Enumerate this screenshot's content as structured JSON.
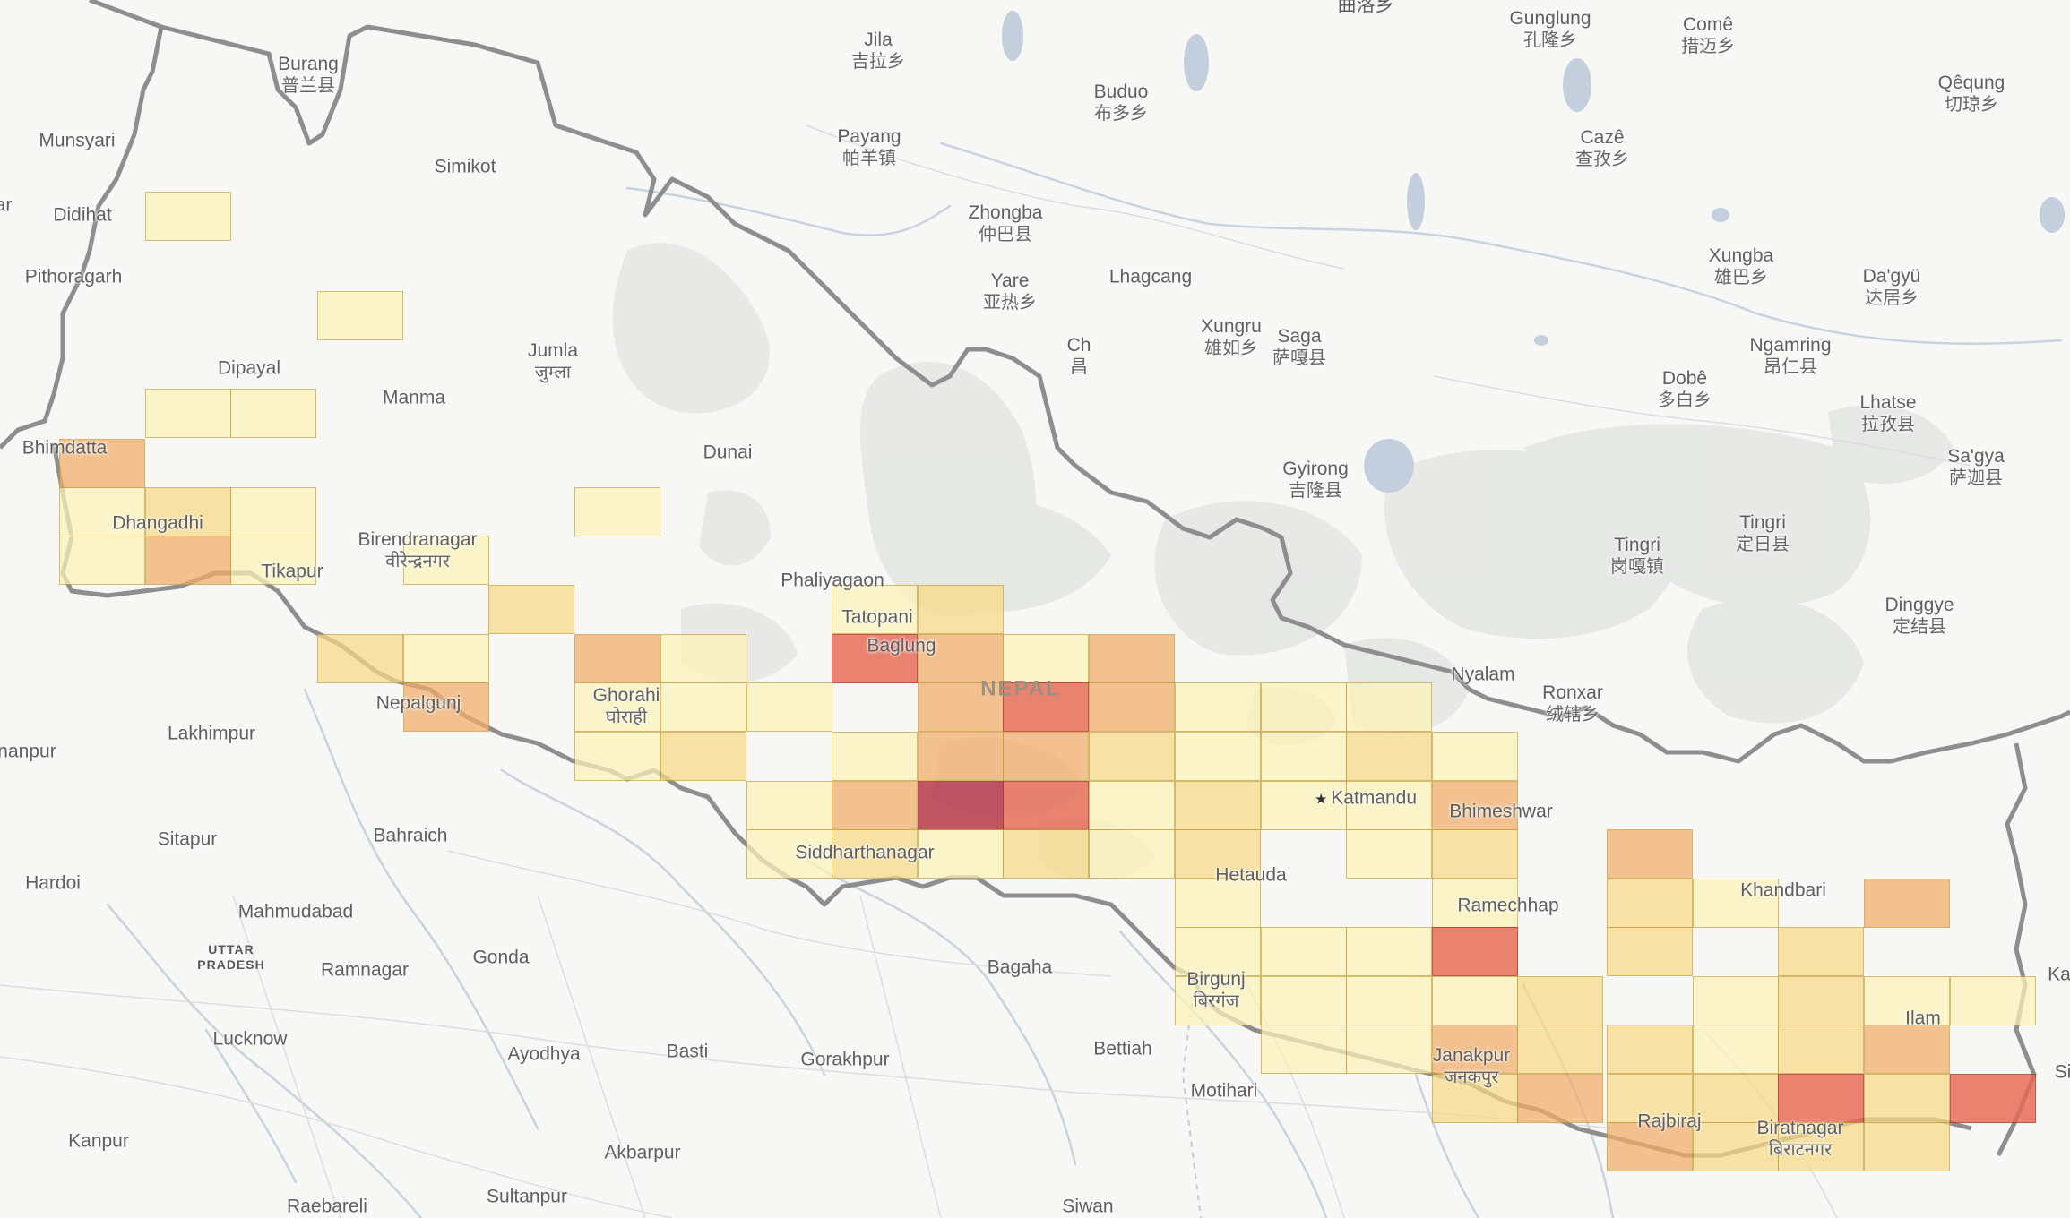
{
  "map": {
    "background_color": "#f7f7f5",
    "border_color": "#8e8e8e",
    "river_color": "#c8d3df",
    "lake_color": "#c3cfdc",
    "land_shade_color": "#e6e8e6",
    "country_label": "NEPAL",
    "capital": "Katmandu"
  },
  "labels": [
    {
      "id": "quluo",
      "name": "曲洛乡",
      "sub": ""
    },
    {
      "id": "burang",
      "name": "Burang",
      "sub": "普兰县"
    },
    {
      "id": "jila",
      "name": "Jila",
      "sub": "吉拉乡"
    },
    {
      "id": "gunglung",
      "name": "Gunglung",
      "sub": "孔隆乡"
    },
    {
      "id": "come",
      "name": "Comê",
      "sub": "措迈乡"
    },
    {
      "id": "qequng",
      "name": "Qêqung",
      "sub": "切琼乡"
    },
    {
      "id": "buduo",
      "name": "Buduo",
      "sub": "布多乡"
    },
    {
      "id": "munsyari",
      "name": "Munsyari",
      "sub": ""
    },
    {
      "id": "payang",
      "name": "Payang",
      "sub": "帕羊镇"
    },
    {
      "id": "caze",
      "name": "Cazê",
      "sub": "查孜乡"
    },
    {
      "id": "simikot",
      "name": "Simikot",
      "sub": ""
    },
    {
      "id": "didihat",
      "name": "Didihat",
      "sub": ""
    },
    {
      "id": "ar",
      "name": "ar",
      "sub": ""
    },
    {
      "id": "zhongba",
      "name": "Zhongba",
      "sub": "仲巴县"
    },
    {
      "id": "xungba",
      "name": "Xungba",
      "sub": "雄巴乡"
    },
    {
      "id": "dagyu",
      "name": "Da'gyü",
      "sub": "达居乡"
    },
    {
      "id": "pithoragarh",
      "name": "Pithoragarh",
      "sub": ""
    },
    {
      "id": "yare",
      "name": "Yare",
      "sub": "亚热乡"
    },
    {
      "id": "lhagcang",
      "name": "Lhagcang",
      "sub": ""
    },
    {
      "id": "xungru",
      "name": "Xungru",
      "sub": "雄如乡"
    },
    {
      "id": "saga",
      "name": "Saga",
      "sub": "萨嘎县"
    },
    {
      "id": "ch",
      "name": "Ch",
      "sub": "昌"
    },
    {
      "id": "ngamring",
      "name": "Ngamring",
      "sub": "昂仁县"
    },
    {
      "id": "jumla",
      "name": "Jumla",
      "sub": "जुम्ला"
    },
    {
      "id": "dipayal",
      "name": "Dipayal",
      "sub": ""
    },
    {
      "id": "manma",
      "name": "Manma",
      "sub": ""
    },
    {
      "id": "dobe",
      "name": "Dobê",
      "sub": "多白乡"
    },
    {
      "id": "lhatse",
      "name": "Lhatse",
      "sub": "拉孜县"
    },
    {
      "id": "bhimdatta",
      "name": "Bhimdatta",
      "sub": ""
    },
    {
      "id": "dunai",
      "name": "Dunai",
      "sub": ""
    },
    {
      "id": "sagya",
      "name": "Sa'gya",
      "sub": "萨迦县"
    },
    {
      "id": "gyirong",
      "name": "Gyirong",
      "sub": "吉隆县"
    },
    {
      "id": "dhangadhi",
      "name": "Dhangadhi",
      "sub": ""
    },
    {
      "id": "tingri1",
      "name": "Tingri",
      "sub": "岗嘎镇"
    },
    {
      "id": "tingri2",
      "name": "Tingri",
      "sub": "定日县"
    },
    {
      "id": "birendranagar",
      "name": "Birendranagar",
      "sub": "वीरेन्द्रनगर"
    },
    {
      "id": "tikapur",
      "name": "Tikapur",
      "sub": ""
    },
    {
      "id": "phaliyagaon",
      "name": "Phaliyagaon",
      "sub": ""
    },
    {
      "id": "tatopani",
      "name": "Tatopani",
      "sub": ""
    },
    {
      "id": "dinggye",
      "name": "Dinggye",
      "sub": "定结县"
    },
    {
      "id": "baglung",
      "name": "Baglung",
      "sub": ""
    },
    {
      "id": "nepal",
      "name": "NEPAL",
      "sub": ""
    },
    {
      "id": "nyalam",
      "name": "Nyalam",
      "sub": ""
    },
    {
      "id": "ronxar",
      "name": "Ronxar",
      "sub": "绒辖乡"
    },
    {
      "id": "ghorahi",
      "name": "Ghorahi",
      "sub": "घोराही"
    },
    {
      "id": "nepalgunj",
      "name": "Nepalgunj",
      "sub": ""
    },
    {
      "id": "lakhimpur",
      "name": "Lakhimpur",
      "sub": ""
    },
    {
      "id": "nanpur",
      "name": "nanpur",
      "sub": ""
    },
    {
      "id": "katmandu",
      "name": "Katmandu",
      "sub": ""
    },
    {
      "id": "bhimeshwar",
      "name": "Bhimeshwar",
      "sub": ""
    },
    {
      "id": "sitapur",
      "name": "Sitapur",
      "sub": ""
    },
    {
      "id": "bahraich",
      "name": "Bahraich",
      "sub": ""
    },
    {
      "id": "siddharthanagar",
      "name": "Siddharthanagar",
      "sub": ""
    },
    {
      "id": "hetauda",
      "name": "Hetauda",
      "sub": ""
    },
    {
      "id": "hardoi",
      "name": "Hardoi",
      "sub": ""
    },
    {
      "id": "khandbari",
      "name": "Khandbari",
      "sub": ""
    },
    {
      "id": "ramechhap",
      "name": "Ramechhap",
      "sub": ""
    },
    {
      "id": "mahmudabad",
      "name": "Mahmudabad",
      "sub": ""
    },
    {
      "id": "uttar",
      "name": "UTTAR",
      "sub": "PRADESH"
    },
    {
      "id": "gonda",
      "name": "Gonda",
      "sub": ""
    },
    {
      "id": "ramnagar",
      "name": "Ramnagar",
      "sub": ""
    },
    {
      "id": "bagaha",
      "name": "Bagaha",
      "sub": ""
    },
    {
      "id": "birgunj",
      "name": "Birgunj",
      "sub": "बिरगंज"
    },
    {
      "id": "ka",
      "name": "Ka",
      "sub": ""
    },
    {
      "id": "ilam",
      "name": "Ilam",
      "sub": ""
    },
    {
      "id": "lucknow",
      "name": "Lucknow",
      "sub": ""
    },
    {
      "id": "ayodhya",
      "name": "Ayodhya",
      "sub": ""
    },
    {
      "id": "basti",
      "name": "Basti",
      "sub": ""
    },
    {
      "id": "bettiah",
      "name": "Bettiah",
      "sub": ""
    },
    {
      "id": "gorakhpur",
      "name": "Gorakhpur",
      "sub": ""
    },
    {
      "id": "janakpur",
      "name": "Janakpur",
      "sub": "जनकपुर"
    },
    {
      "id": "si",
      "name": "Si",
      "sub": ""
    },
    {
      "id": "motihari",
      "name": "Motihari",
      "sub": ""
    },
    {
      "id": "rajbiraj",
      "name": "Rajbiraj",
      "sub": ""
    },
    {
      "id": "biratnagar",
      "name": "Biratnagar",
      "sub": "बिराटनगर"
    },
    {
      "id": "kanpur",
      "name": "Kanpur",
      "sub": ""
    },
    {
      "id": "akbarpur",
      "name": "Akbarpur",
      "sub": ""
    },
    {
      "id": "raebareli",
      "name": "Raebareli",
      "sub": ""
    },
    {
      "id": "sultanpur",
      "name": "Sultanpur",
      "sub": ""
    },
    {
      "id": "siwan",
      "name": "Siwan",
      "sub": ""
    }
  ],
  "heatmap": {
    "levels": [
      "#fdf3b8",
      "#f8d985",
      "#f2ad68",
      "#e76a54",
      "#b43245"
    ],
    "cell_levels": [
      {
        "id": "c0",
        "level": 0
      },
      {
        "id": "c1",
        "level": 0
      },
      {
        "id": "c2",
        "level": 0
      },
      {
        "id": "c3",
        "level": 0
      },
      {
        "id": "c4",
        "level": 2
      },
      {
        "id": "c5",
        "level": 0
      },
      {
        "id": "c6",
        "level": 1
      },
      {
        "id": "c7",
        "level": 0
      },
      {
        "id": "c8",
        "level": 0
      },
      {
        "id": "c9",
        "level": 2
      },
      {
        "id": "c10",
        "level": 0
      },
      {
        "id": "c11",
        "level": 0
      },
      {
        "id": "c12",
        "level": 0
      },
      {
        "id": "c13",
        "level": 1
      },
      {
        "id": "c14",
        "level": 1
      },
      {
        "id": "c15",
        "level": 0
      },
      {
        "id": "c16",
        "level": 2
      },
      {
        "id": "c17",
        "level": 0
      },
      {
        "id": "c18",
        "level": 0
      },
      {
        "id": "c19",
        "level": 1
      },
      {
        "id": "c20",
        "level": 3
      },
      {
        "id": "c21",
        "level": 2
      },
      {
        "id": "c22",
        "level": 0
      },
      {
        "id": "c23",
        "level": 2
      },
      {
        "id": "c24",
        "level": 2
      },
      {
        "id": "c25",
        "level": 0
      },
      {
        "id": "c26",
        "level": 0
      },
      {
        "id": "c27",
        "level": 0
      },
      {
        "id": "c28",
        "level": 2
      },
      {
        "id": "c29",
        "level": 3
      },
      {
        "id": "c30",
        "level": 2
      },
      {
        "id": "c31",
        "level": 0
      },
      {
        "id": "c32",
        "level": 0
      },
      {
        "id": "c33",
        "level": 0
      },
      {
        "id": "c34",
        "level": 0
      },
      {
        "id": "c35",
        "level": 1
      },
      {
        "id": "c36",
        "level": 0
      },
      {
        "id": "c37",
        "level": 2
      },
      {
        "id": "c38",
        "level": 2
      },
      {
        "id": "c39",
        "level": 1
      },
      {
        "id": "c40",
        "level": 0
      },
      {
        "id": "c41",
        "level": 0
      },
      {
        "id": "c42",
        "level": 1
      },
      {
        "id": "c43",
        "level": 0
      },
      {
        "id": "c44",
        "level": 0
      },
      {
        "id": "c45",
        "level": 2
      },
      {
        "id": "c46",
        "level": 4
      },
      {
        "id": "c47",
        "level": 3
      },
      {
        "id": "c48",
        "level": 0
      },
      {
        "id": "c49",
        "level": 1
      },
      {
        "id": "c50",
        "level": 0
      },
      {
        "id": "c51",
        "level": 0
      },
      {
        "id": "c52",
        "level": 2
      },
      {
        "id": "c53",
        "level": 0
      },
      {
        "id": "c54",
        "level": 1
      },
      {
        "id": "c55",
        "level": 0
      },
      {
        "id": "c56",
        "level": 1
      },
      {
        "id": "c57",
        "level": 0
      },
      {
        "id": "c58",
        "level": 1
      },
      {
        "id": "c59",
        "level": 0
      },
      {
        "id": "c60",
        "level": 1
      },
      {
        "id": "c61",
        "level": 0
      },
      {
        "id": "c62",
        "level": 0
      },
      {
        "id": "c63",
        "level": 2
      },
      {
        "id": "c64",
        "level": 1
      },
      {
        "id": "c65",
        "level": 0
      },
      {
        "id": "c66",
        "level": 2
      },
      {
        "id": "c67",
        "level": 0
      },
      {
        "id": "c68",
        "level": 0
      },
      {
        "id": "c69",
        "level": 0
      },
      {
        "id": "c70",
        "level": 3
      },
      {
        "id": "c71",
        "level": 1
      },
      {
        "id": "c72",
        "level": 1
      },
      {
        "id": "c73",
        "level": 0
      },
      {
        "id": "c74",
        "level": 0
      },
      {
        "id": "c75",
        "level": 0
      },
      {
        "id": "c76",
        "level": 0
      },
      {
        "id": "c77",
        "level": 1
      },
      {
        "id": "c78",
        "level": 1
      },
      {
        "id": "c79",
        "level": 0
      },
      {
        "id": "c80",
        "level": 0
      },
      {
        "id": "c81",
        "level": 0
      },
      {
        "id": "c82",
        "level": 0
      },
      {
        "id": "c83",
        "level": 0
      },
      {
        "id": "c84",
        "level": 2
      },
      {
        "id": "c85",
        "level": 1
      },
      {
        "id": "c86",
        "level": 1
      },
      {
        "id": "c87",
        "level": 0
      },
      {
        "id": "c88",
        "level": 1
      },
      {
        "id": "c89",
        "level": 2
      },
      {
        "id": "c90",
        "level": 1
      },
      {
        "id": "c91",
        "level": 2
      },
      {
        "id": "c92",
        "level": 1
      },
      {
        "id": "c93",
        "level": 1
      },
      {
        "id": "c94",
        "level": 3
      },
      {
        "id": "c95",
        "level": 1
      },
      {
        "id": "c96",
        "level": 3
      },
      {
        "id": "c97",
        "level": 2
      },
      {
        "id": "c98",
        "level": 1
      },
      {
        "id": "c99",
        "level": 1
      },
      {
        "id": "c100",
        "level": 1
      },
      {
        "id": "c101",
        "level": 3
      }
    ]
  }
}
